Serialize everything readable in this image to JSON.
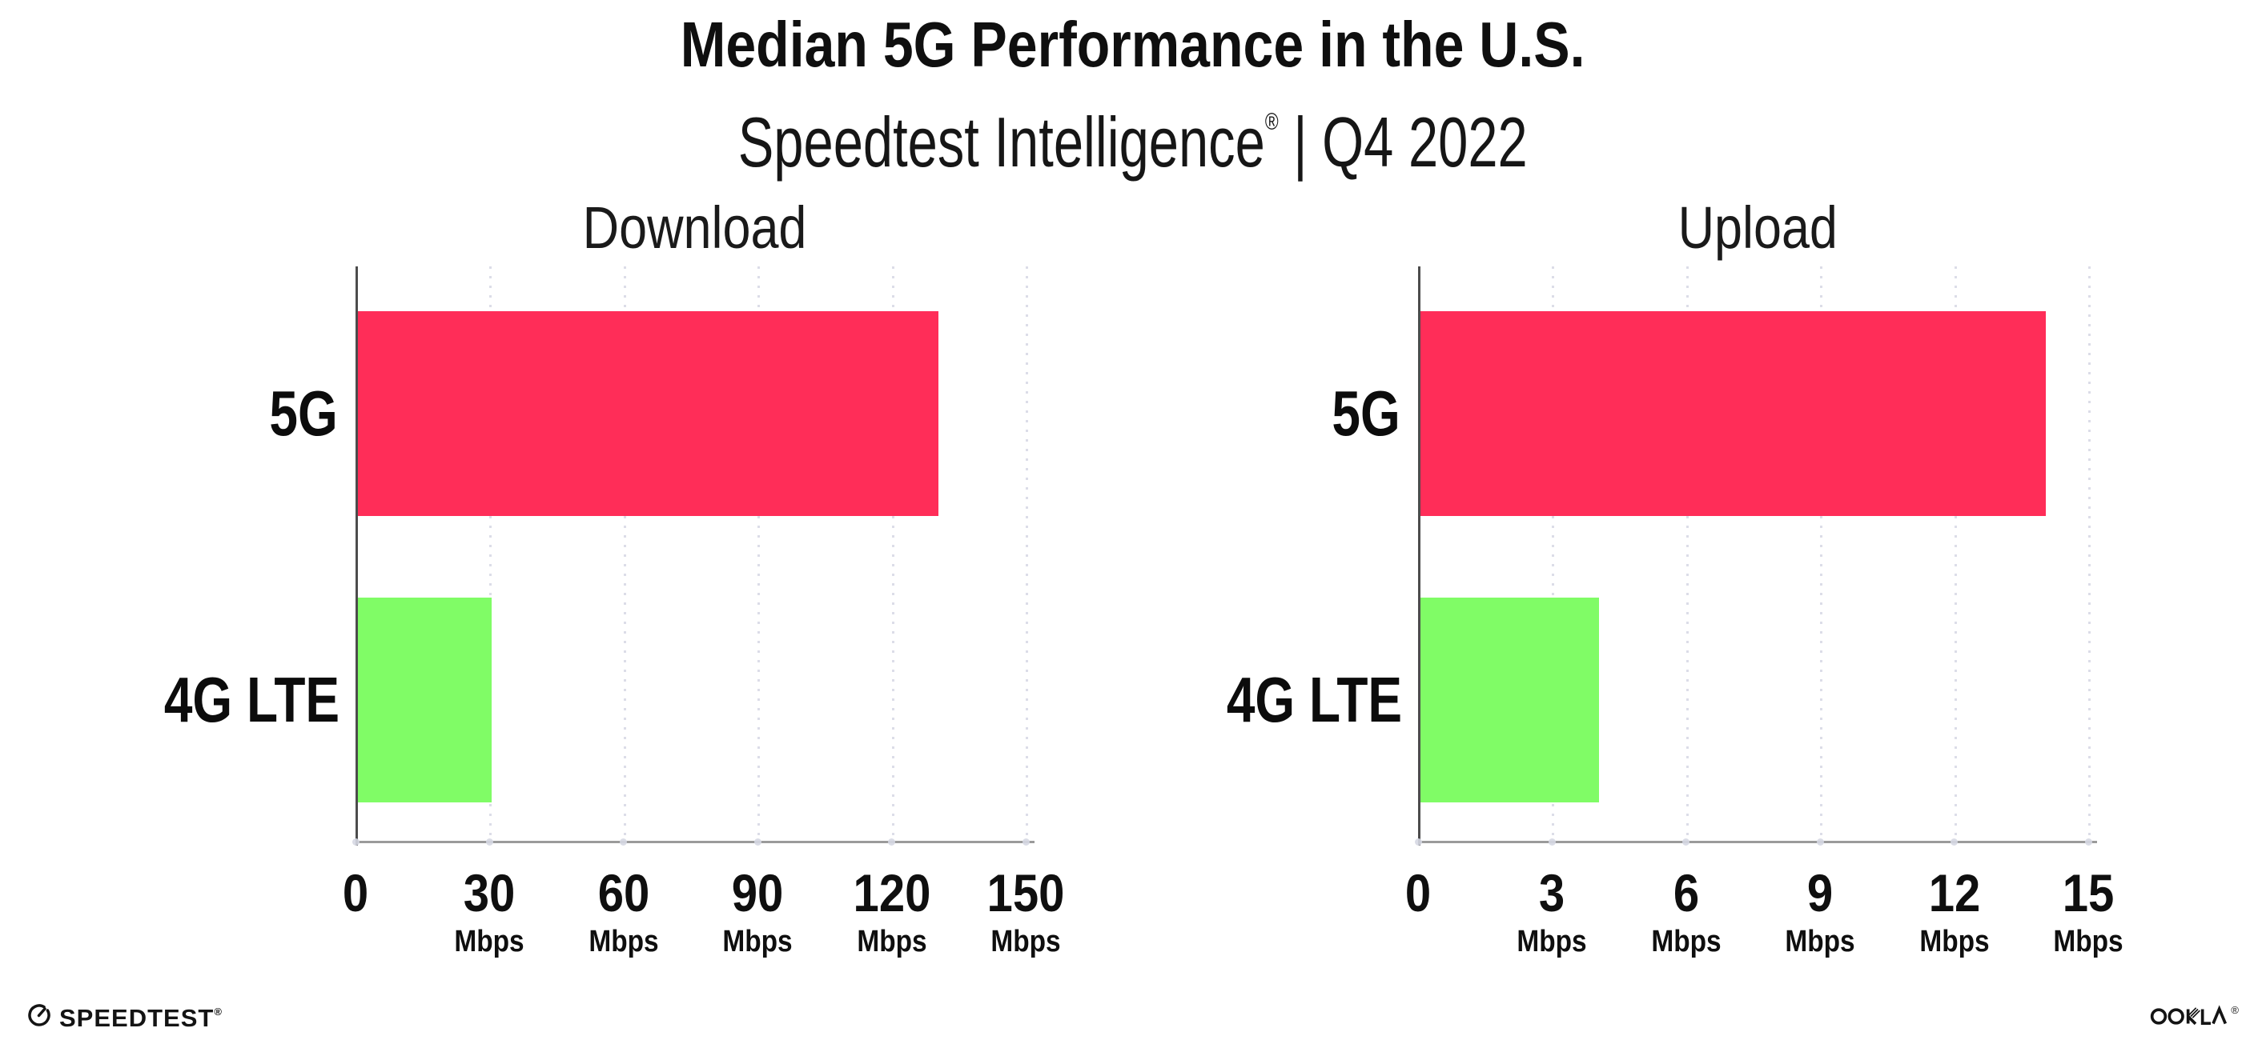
{
  "header": {
    "title": "Median 5G Performance in the U.S.",
    "subtitle_brand": "Speedtest Intelligence",
    "subtitle_registered": "®",
    "subtitle_rest": " | Q4 2022"
  },
  "chart_data": [
    {
      "type": "bar",
      "orientation": "horizontal",
      "title": "Download",
      "categories": [
        "5G",
        "4G LTE"
      ],
      "values": [
        130,
        30
      ],
      "value_unit": "Mbps",
      "xlim": [
        0,
        150
      ],
      "ticks": [
        0,
        30,
        60,
        90,
        120,
        150
      ],
      "tick_unit": "Mbps",
      "bar_colors": [
        "#FF2D58",
        "#80FC66"
      ],
      "grid": "vertical-dotted",
      "legend": "none"
    },
    {
      "type": "bar",
      "orientation": "horizontal",
      "title": "Upload",
      "categories": [
        "5G",
        "4G LTE"
      ],
      "values": [
        14,
        4
      ],
      "value_unit": "Mbps",
      "xlim": [
        0,
        15
      ],
      "ticks": [
        0,
        3,
        6,
        9,
        12,
        15
      ],
      "tick_unit": "Mbps",
      "bar_colors": [
        "#FF2D58",
        "#80FC66"
      ],
      "grid": "vertical-dotted",
      "legend": "none"
    }
  ],
  "footer": {
    "speedtest_label": "SPEEDTEST",
    "speedtest_registered": "®",
    "ookla_label": "OOKLA",
    "ookla_registered": "®"
  },
  "colors": {
    "bar_5g": "#FF2D58",
    "bar_4g_lte": "#80FC66",
    "y_axis": "#4c4c4c",
    "x_axis": "#9b9b9b",
    "gridline": "#dcdde8",
    "tick_dot": "#d6d8e3",
    "text": "#0f0f0f",
    "background": "#ffffff"
  }
}
